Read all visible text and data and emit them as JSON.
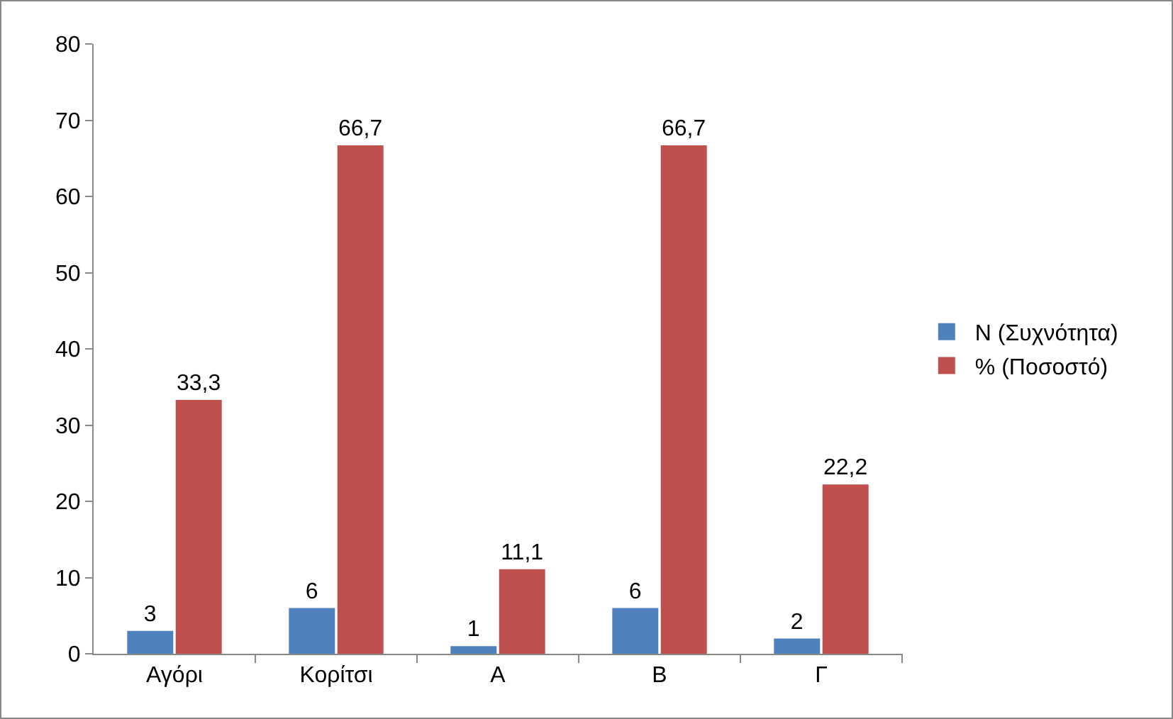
{
  "chart_data": {
    "type": "bar",
    "categories": [
      "Αγόρι",
      "Κορίτσι",
      "Α",
      "Β",
      "Γ"
    ],
    "series": [
      {
        "name": "N (Συχνότητα)",
        "color": "#4f81bd",
        "values": [
          3,
          6,
          1,
          6,
          2
        ],
        "value_labels": [
          "3",
          "6",
          "1",
          "6",
          "2"
        ]
      },
      {
        "name": "% (Ποσοστό)",
        "color": "#c0504d",
        "values": [
          33.3,
          66.7,
          11.1,
          66.7,
          22.2
        ],
        "value_labels": [
          "33,3",
          "66,7",
          "11,1",
          "66,7",
          "22,2"
        ]
      }
    ],
    "ylim": [
      0,
      80
    ],
    "yticks": [
      0,
      10,
      20,
      30,
      40,
      50,
      60,
      70,
      80
    ],
    "grid": false,
    "legend": "right"
  }
}
